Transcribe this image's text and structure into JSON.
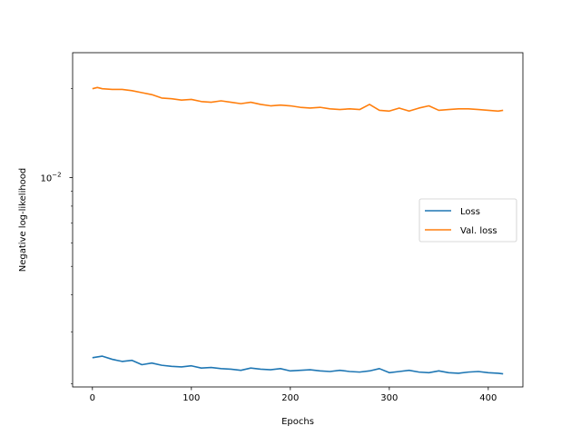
{
  "chart_data": {
    "type": "line",
    "xlabel": "Epochs",
    "ylabel": "Negative log-likelihood",
    "xlim": [
      -20,
      435
    ],
    "ylim": [
      0.00195,
      0.0265
    ],
    "yscale": "log",
    "x_ticks": [
      {
        "value": 0,
        "label": "0"
      },
      {
        "value": 100,
        "label": "100"
      },
      {
        "value": 200,
        "label": "200"
      },
      {
        "value": 300,
        "label": "300"
      },
      {
        "value": 400,
        "label": "400"
      }
    ],
    "y_major_tick": {
      "value": 0.01,
      "label_base": "10",
      "label_exp": "−2"
    },
    "y_minor_ticks": [
      0.002,
      0.003,
      0.004,
      0.005,
      0.006,
      0.007,
      0.008,
      0.009,
      0.02
    ],
    "grid": false,
    "legend": {
      "position": "center-right"
    },
    "series": [
      {
        "name": "Loss",
        "color": "#1f77b4",
        "x": [
          0,
          10,
          20,
          30,
          40,
          50,
          60,
          70,
          80,
          90,
          100,
          110,
          120,
          130,
          140,
          150,
          160,
          170,
          180,
          190,
          200,
          210,
          220,
          230,
          240,
          250,
          260,
          270,
          280,
          290,
          300,
          310,
          320,
          330,
          340,
          350,
          360,
          370,
          380,
          390,
          400,
          410,
          415
        ],
        "values": [
          0.00245,
          0.00248,
          0.00242,
          0.00238,
          0.0024,
          0.00232,
          0.00235,
          0.00231,
          0.00229,
          0.00228,
          0.0023,
          0.00226,
          0.00227,
          0.00225,
          0.00224,
          0.00222,
          0.00226,
          0.00224,
          0.00223,
          0.00225,
          0.00221,
          0.00222,
          0.00223,
          0.00221,
          0.0022,
          0.00222,
          0.0022,
          0.00219,
          0.00221,
          0.00225,
          0.00218,
          0.0022,
          0.00222,
          0.00219,
          0.00218,
          0.00221,
          0.00218,
          0.00217,
          0.00219,
          0.0022,
          0.00218,
          0.00217,
          0.00216
        ]
      },
      {
        "name": "Val. loss",
        "color": "#ff7f0e",
        "x": [
          0,
          5,
          10,
          20,
          30,
          40,
          50,
          60,
          70,
          80,
          90,
          100,
          110,
          120,
          130,
          140,
          150,
          160,
          170,
          180,
          190,
          200,
          210,
          220,
          230,
          240,
          250,
          260,
          270,
          280,
          290,
          300,
          310,
          320,
          330,
          340,
          350,
          360,
          370,
          380,
          390,
          400,
          410,
          415
        ],
        "values": [
          0.02,
          0.0202,
          0.02,
          0.0199,
          0.0199,
          0.0197,
          0.0194,
          0.0191,
          0.0186,
          0.0185,
          0.0183,
          0.0184,
          0.0181,
          0.018,
          0.0182,
          0.018,
          0.0178,
          0.018,
          0.0177,
          0.0175,
          0.0176,
          0.0175,
          0.0173,
          0.0172,
          0.0173,
          0.0171,
          0.017,
          0.0171,
          0.017,
          0.0177,
          0.0169,
          0.0168,
          0.0172,
          0.0168,
          0.0172,
          0.0175,
          0.0169,
          0.017,
          0.0171,
          0.0171,
          0.017,
          0.0169,
          0.0168,
          0.0169
        ]
      }
    ]
  }
}
